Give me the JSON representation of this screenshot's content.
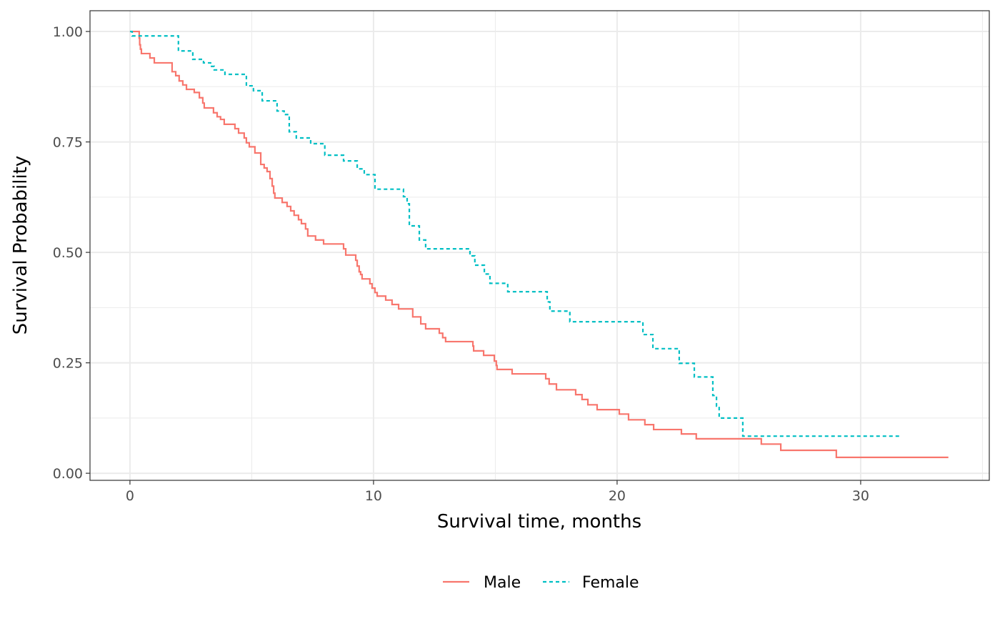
{
  "chart_data": {
    "type": "line",
    "subtype": "step (Kaplan-Meier)",
    "title": "",
    "xlabel": "Survival time, months",
    "ylabel": "Survival Probability",
    "xlim": [
      -1.64,
      35.28
    ],
    "ylim": [
      -0.016,
      1.047
    ],
    "x_ticks": [
      0,
      10,
      20,
      30
    ],
    "x_tick_labels": [
      "0",
      "10",
      "20",
      "30"
    ],
    "y_ticks": [
      0,
      0.25,
      0.5,
      0.75,
      1
    ],
    "y_tick_labels": [
      "0.00",
      "0.25",
      "0.50",
      "0.75",
      "1.00"
    ],
    "grid": true,
    "legend_position": "bottom",
    "series": [
      {
        "name": "Male",
        "color": "#F8766D",
        "linetype": "solid",
        "end_time": 33.6,
        "steps": [
          [
            0,
            1.0
          ],
          [
            0.38,
            0.985
          ],
          [
            0.4,
            0.97
          ],
          [
            0.43,
            0.96
          ],
          [
            0.47,
            0.95
          ],
          [
            0.82,
            0.94
          ],
          [
            1.0,
            0.929
          ],
          [
            1.73,
            0.909
          ],
          [
            1.88,
            0.9
          ],
          [
            2.02,
            0.888
          ],
          [
            2.17,
            0.879
          ],
          [
            2.32,
            0.869
          ],
          [
            2.64,
            0.862
          ],
          [
            2.85,
            0.85
          ],
          [
            2.99,
            0.838
          ],
          [
            3.05,
            0.827
          ],
          [
            3.43,
            0.816
          ],
          [
            3.58,
            0.807
          ],
          [
            3.72,
            0.801
          ],
          [
            3.87,
            0.79
          ],
          [
            4.31,
            0.78
          ],
          [
            4.46,
            0.77
          ],
          [
            4.69,
            0.759
          ],
          [
            4.78,
            0.748
          ],
          [
            4.9,
            0.739
          ],
          [
            5.13,
            0.725
          ],
          [
            5.37,
            0.699
          ],
          [
            5.51,
            0.691
          ],
          [
            5.63,
            0.683
          ],
          [
            5.75,
            0.667
          ],
          [
            5.84,
            0.65
          ],
          [
            5.9,
            0.634
          ],
          [
            5.95,
            0.623
          ],
          [
            6.25,
            0.613
          ],
          [
            6.45,
            0.604
          ],
          [
            6.6,
            0.594
          ],
          [
            6.74,
            0.584
          ],
          [
            6.92,
            0.574
          ],
          [
            7.04,
            0.565
          ],
          [
            7.21,
            0.553
          ],
          [
            7.3,
            0.537
          ],
          [
            7.62,
            0.528
          ],
          [
            7.95,
            0.519
          ],
          [
            8.77,
            0.508
          ],
          [
            8.86,
            0.494
          ],
          [
            9.27,
            0.482
          ],
          [
            9.33,
            0.469
          ],
          [
            9.41,
            0.456
          ],
          [
            9.47,
            0.45
          ],
          [
            9.53,
            0.44
          ],
          [
            9.85,
            0.429
          ],
          [
            9.94,
            0.419
          ],
          [
            10.06,
            0.409
          ],
          [
            10.15,
            0.401
          ],
          [
            10.5,
            0.392
          ],
          [
            10.76,
            0.382
          ],
          [
            11.03,
            0.372
          ],
          [
            11.61,
            0.354
          ],
          [
            11.94,
            0.338
          ],
          [
            12.14,
            0.327
          ],
          [
            12.7,
            0.317
          ],
          [
            12.84,
            0.307
          ],
          [
            12.96,
            0.298
          ],
          [
            14.08,
            0.288
          ],
          [
            14.11,
            0.277
          ],
          [
            14.52,
            0.267
          ],
          [
            14.96,
            0.254
          ],
          [
            15.04,
            0.244
          ],
          [
            15.07,
            0.235
          ],
          [
            15.69,
            0.225
          ],
          [
            17.07,
            0.214
          ],
          [
            17.21,
            0.202
          ],
          [
            17.51,
            0.189
          ],
          [
            18.3,
            0.178
          ],
          [
            18.56,
            0.167
          ],
          [
            18.8,
            0.155
          ],
          [
            19.18,
            0.144
          ],
          [
            20.09,
            0.134
          ],
          [
            20.47,
            0.121
          ],
          [
            21.14,
            0.11
          ],
          [
            21.5,
            0.099
          ],
          [
            22.64,
            0.089
          ],
          [
            23.25,
            0.078
          ],
          [
            25.92,
            0.066
          ],
          [
            26.72,
            0.052
          ],
          [
            29.0,
            0.036
          ]
        ]
      },
      {
        "name": "Female",
        "color": "#00BFC4",
        "linetype": "dashed",
        "end_time": 31.6,
        "steps": [
          [
            0,
            1.0
          ],
          [
            0.09,
            0.99
          ],
          [
            1.99,
            0.956
          ],
          [
            2.58,
            0.937
          ],
          [
            3.02,
            0.929
          ],
          [
            3.31,
            0.921
          ],
          [
            3.46,
            0.913
          ],
          [
            3.9,
            0.903
          ],
          [
            4.78,
            0.877
          ],
          [
            5.07,
            0.866
          ],
          [
            5.43,
            0.843
          ],
          [
            6.04,
            0.82
          ],
          [
            6.33,
            0.812
          ],
          [
            6.54,
            0.773
          ],
          [
            6.83,
            0.759
          ],
          [
            7.42,
            0.746
          ],
          [
            8.0,
            0.72
          ],
          [
            8.77,
            0.707
          ],
          [
            9.33,
            0.689
          ],
          [
            9.62,
            0.676
          ],
          [
            10.06,
            0.643
          ],
          [
            11.23,
            0.626
          ],
          [
            11.38,
            0.61
          ],
          [
            11.47,
            0.56
          ],
          [
            11.88,
            0.528
          ],
          [
            12.14,
            0.508
          ],
          [
            13.96,
            0.492
          ],
          [
            14.16,
            0.471
          ],
          [
            14.55,
            0.451
          ],
          [
            14.78,
            0.43
          ],
          [
            15.51,
            0.411
          ],
          [
            17.13,
            0.388
          ],
          [
            17.24,
            0.367
          ],
          [
            18.06,
            0.343
          ],
          [
            21.06,
            0.314
          ],
          [
            21.47,
            0.282
          ],
          [
            22.55,
            0.249
          ],
          [
            23.17,
            0.218
          ],
          [
            23.93,
            0.176
          ],
          [
            24.08,
            0.152
          ],
          [
            24.19,
            0.125
          ],
          [
            25.16,
            0.084
          ]
        ]
      }
    ]
  }
}
